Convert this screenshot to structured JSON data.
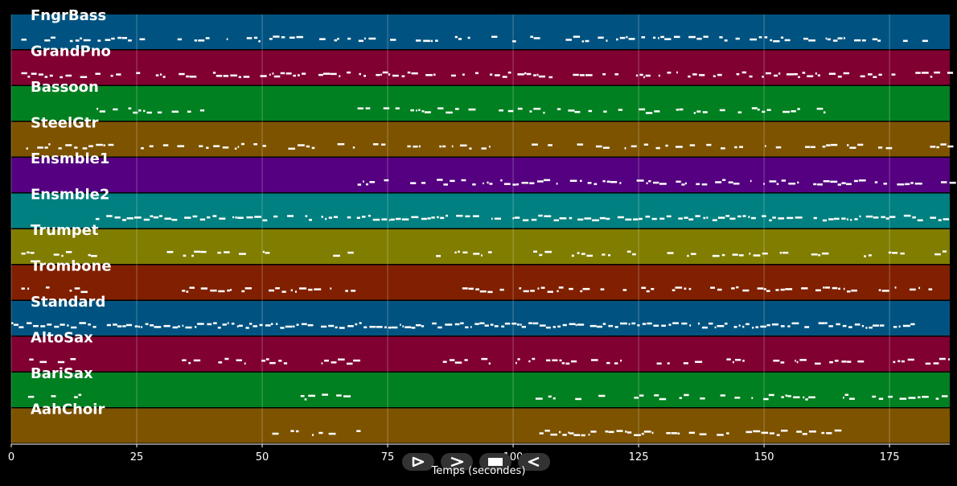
{
  "chart_data": {
    "type": "piano-roll",
    "xlabel": "Temps (secondes)",
    "xlim": [
      0,
      187
    ],
    "xticks": [
      0,
      25,
      50,
      75,
      100,
      125,
      150,
      175
    ],
    "grid": true,
    "tracks": [
      {
        "name": "FngrBass",
        "color": "#005381",
        "segments": [
          [
            2,
            182
          ]
        ],
        "density": 0.55
      },
      {
        "name": "GrandPno",
        "color": "#800032",
        "segments": [
          [
            2,
            187
          ]
        ],
        "density": 0.7
      },
      {
        "name": "Bassoon",
        "color": "#008020",
        "segments": [
          [
            17,
            43
          ],
          [
            69,
            162
          ]
        ],
        "density": 0.55
      },
      {
        "name": "SteelGtr",
        "color": "#7d5300",
        "segments": [
          [
            2,
            187
          ]
        ],
        "density": 0.45
      },
      {
        "name": "Ensmble1",
        "color": "#540080",
        "segments": [
          [
            69,
            187
          ]
        ],
        "density": 0.75
      },
      {
        "name": "Ensmble2",
        "color": "#008080",
        "segments": [
          [
            16,
            187
          ]
        ],
        "density": 0.85
      },
      {
        "name": "Trumpet",
        "color": "#807d00",
        "segments": [
          [
            2,
            16
          ],
          [
            24,
            26
          ],
          [
            31,
            69
          ],
          [
            84,
            187
          ]
        ],
        "density": 0.4
      },
      {
        "name": "Trombone",
        "color": "#802000",
        "segments": [
          [
            2,
            16
          ],
          [
            34,
            69
          ],
          [
            87,
            187
          ]
        ],
        "density": 0.6
      },
      {
        "name": "Standard",
        "color": "#005381",
        "segments": [
          [
            0,
            180
          ]
        ],
        "density": 0.9
      },
      {
        "name": "AltoSax",
        "color": "#800032",
        "segments": [
          [
            2,
            16
          ],
          [
            34,
            69
          ],
          [
            86,
            187
          ]
        ],
        "density": 0.55
      },
      {
        "name": "BariSax",
        "color": "#008020",
        "segments": [
          [
            2,
            16
          ],
          [
            50,
            69
          ],
          [
            103,
            187
          ]
        ],
        "density": 0.4
      },
      {
        "name": "AahChoir",
        "color": "#7d5300",
        "segments": [
          [
            52,
            69
          ],
          [
            104,
            165
          ]
        ],
        "density": 0.6
      }
    ]
  },
  "controls": [
    {
      "name": "play",
      "icon": "play-icon"
    },
    {
      "name": "forward",
      "icon": "forward-icon"
    },
    {
      "name": "stop",
      "icon": "stop-icon"
    },
    {
      "name": "rewind",
      "icon": "rewind-icon"
    }
  ]
}
